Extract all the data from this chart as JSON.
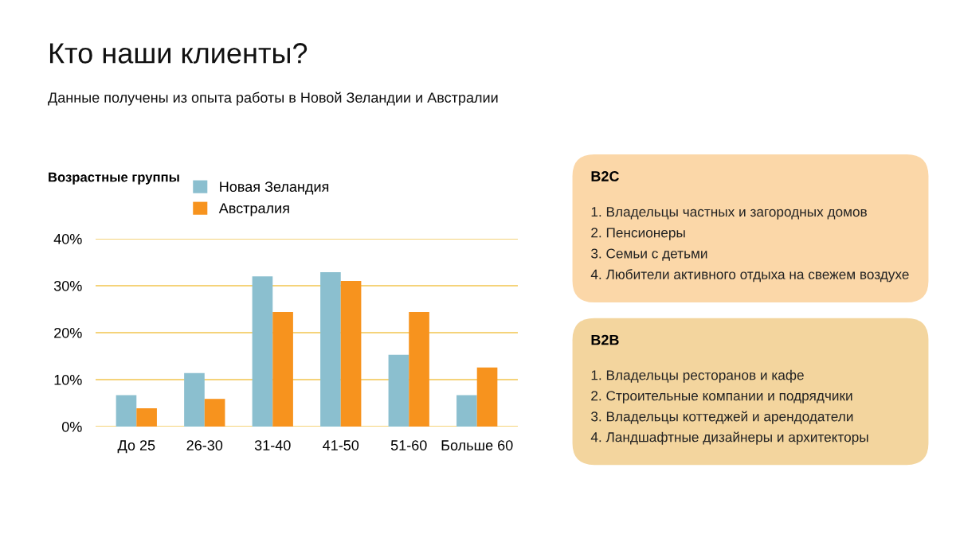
{
  "chart_data": [
    {
      "type": "bar",
      "title": "Кто наши клиенты?",
      "subtitle": "Данные получены из опыта работы в Новой Зеландии и Австралии",
      "legend_title": "Возрастные группы",
      "categories": [
        "До 25",
        "26-30",
        "31-40",
        "41-50",
        "51-60",
        "Больше 60"
      ],
      "series": [
        {
          "name": "Новая Зеландия",
          "color": "#8bbfcf",
          "values": [
            6.7,
            11.4,
            32,
            32.9,
            15.3,
            6.7
          ]
        },
        {
          "name": "Австралия",
          "color": "#f7931e",
          "values": [
            3.9,
            5.9,
            24.4,
            31,
            24.4,
            12.6
          ]
        }
      ],
      "ylim": [
        0,
        40
      ],
      "yticks": [
        {
          "value": 0,
          "label": "0%"
        },
        {
          "value": 10,
          "label": "10%"
        },
        {
          "value": 20,
          "label": "20%"
        },
        {
          "value": 30,
          "label": "30%"
        },
        {
          "value": 40,
          "label": "40%"
        }
      ],
      "grid": "y",
      "legend": "top left"
    },
    {
      "type": "other",
      "title": "B2C",
      "color": "#fbd7a8",
      "annotations": [
        "1. Владельцы частных и загородных домов",
        "2. Пенсионеры",
        "3. Семьи с детьми",
        "4. Любители активного отдыха на свежем воздухе"
      ]
    },
    {
      "type": "other",
      "title": "B2B",
      "color": "#f3d59e",
      "annotations": [
        "1. Владельцы ресторанов и кафе",
        "2. Строительные компании и подрядчики",
        "3. Владельцы коттеджей и арендодатели",
        "4. Ландшафтные дизайнеры и архитекторы"
      ]
    }
  ]
}
